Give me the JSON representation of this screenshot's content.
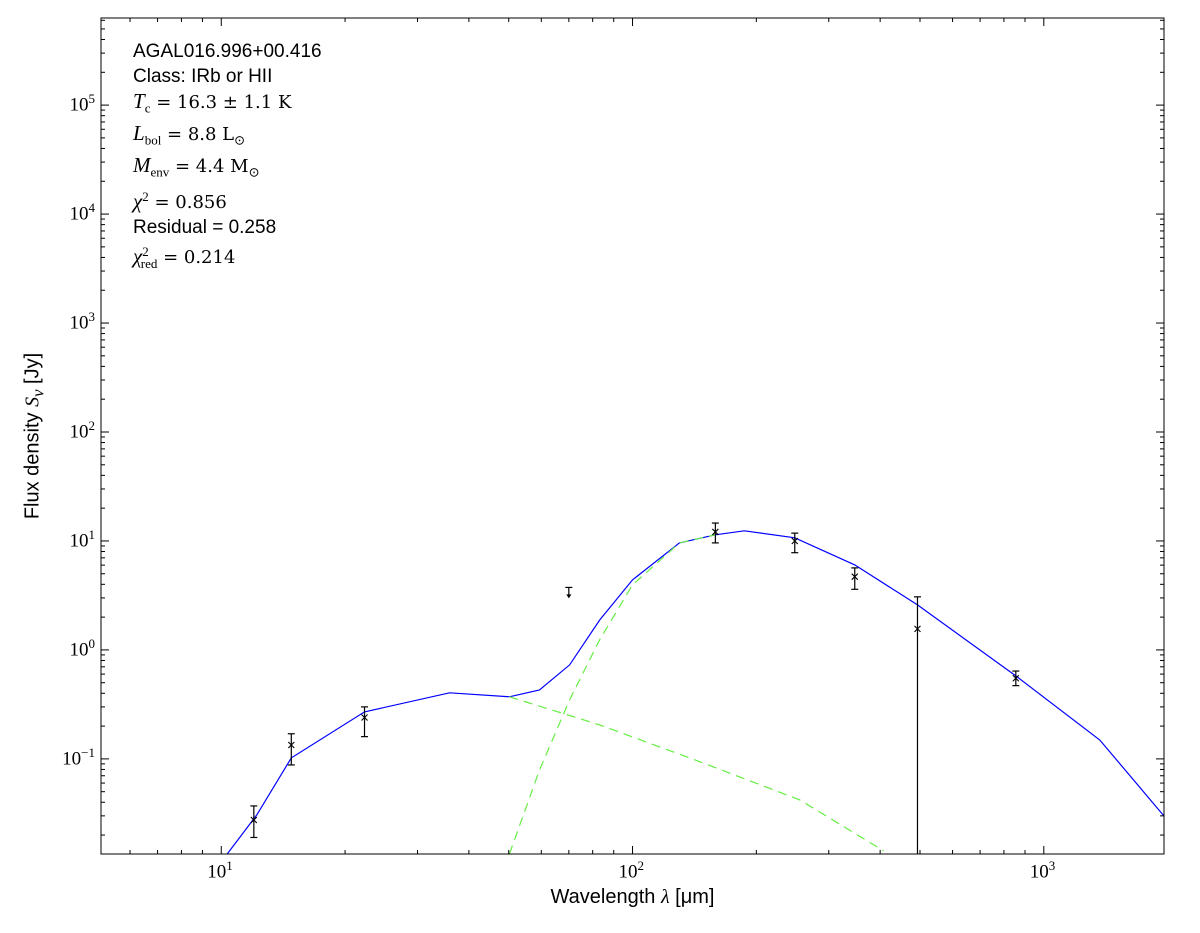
{
  "chart_data": {
    "type": "scatter",
    "xscale": "log",
    "yscale": "log",
    "xlim": [
      5.1,
      1960
    ],
    "ylim": [
      0.0134,
      630000
    ],
    "xlabel": {
      "text": "Wavelength ",
      "sym": "λ",
      "unit": " [μm]"
    },
    "ylabel": {
      "text": "Flux density ",
      "sym": "S",
      "sub": "ν",
      "unit": " [Jy]"
    },
    "xticks": [
      {
        "base": "10",
        "exp": "1",
        "v": 10
      },
      {
        "base": "10",
        "exp": "2",
        "v": 100
      },
      {
        "base": "10",
        "exp": "3",
        "v": 1000
      }
    ],
    "yticks": [
      {
        "base": "10",
        "exp": "−1",
        "v": 0.1
      },
      {
        "base": "10",
        "exp": "0",
        "v": 1
      },
      {
        "base": "10",
        "exp": "1",
        "v": 10
      },
      {
        "base": "10",
        "exp": "2",
        "v": 100
      },
      {
        "base": "10",
        "exp": "3",
        "v": 1000
      },
      {
        "base": "10",
        "exp": "4",
        "v": 10000
      },
      {
        "base": "10",
        "exp": "5",
        "v": 100000
      }
    ],
    "grid": false,
    "points": [
      {
        "x": 12,
        "y": 0.0275,
        "lo": 0.019,
        "hi": 0.037
      },
      {
        "x": 14.8,
        "y": 0.134,
        "lo": 0.088,
        "hi": 0.17
      },
      {
        "x": 22.3,
        "y": 0.24,
        "lo": 0.16,
        "hi": 0.3
      },
      {
        "x": 159,
        "y": 12.1,
        "lo": 9.6,
        "hi": 14.6
      },
      {
        "x": 248,
        "y": 10,
        "lo": 7.8,
        "hi": 11.8
      },
      {
        "x": 347,
        "y": 4.7,
        "lo": 3.6,
        "hi": 5.66
      },
      {
        "x": 493,
        "y": 1.56,
        "lo": 0.0001,
        "hi": 3.07
      },
      {
        "x": 855,
        "y": 0.55,
        "lo": 0.47,
        "hi": 0.64
      }
    ],
    "upper_limits": [
      {
        "x": 70,
        "y": 3.3
      }
    ],
    "series": [
      {
        "style": "solid",
        "color": "#0000ff",
        "x": [
          10.34,
          12.2,
          14.8,
          22.3,
          35.9,
          50.2,
          59.4,
          70.3,
          83.2,
          100,
          130,
          159,
          187,
          248,
          347,
          493,
          855,
          1368,
          1959
        ],
        "y": [
          0.0134,
          0.0306,
          0.102,
          0.27,
          0.404,
          0.371,
          0.43,
          0.728,
          1.88,
          4.39,
          9.59,
          11.4,
          12.4,
          10.7,
          6.03,
          2.59,
          0.577,
          0.149,
          0.03
        ]
      },
      {
        "style": "dashed",
        "color": "#66ee44",
        "x": [
          50.2,
          83.2,
          146,
          255,
          408
        ],
        "y": [
          0.371,
          0.205,
          0.094,
          0.042,
          0.0143
        ]
      },
      {
        "style": "dashed",
        "color": "#66ee44",
        "x": [
          50.2,
          59.4,
          70.3,
          83.2,
          100,
          130,
          159
        ],
        "y": [
          0.0134,
          0.079,
          0.348,
          1.24,
          3.95,
          9.59,
          11.4
        ]
      }
    ],
    "annotations": {
      "name": "AGAL016.996+00.416",
      "class": "Class: IRb or HII",
      "tc": {
        "sym": "T",
        "sub": "c",
        "rest": " = 16.3 ± 1.1 K"
      },
      "lbol": {
        "sym": "L",
        "sub": "bol",
        "rest": " = 8.8 L",
        "sun": "⊙"
      },
      "menv": {
        "sym": "M",
        "sub": "env",
        "rest": " = 4.4 M",
        "sun": "⊙"
      },
      "chi2": {
        "sym": "χ",
        "sup": "2",
        "rest": " = 0.856"
      },
      "residual": "Residual = 0.258",
      "chi2red": {
        "sym": "χ",
        "sup": "2",
        "sub": "red",
        "rest": " = 0.214"
      }
    }
  }
}
